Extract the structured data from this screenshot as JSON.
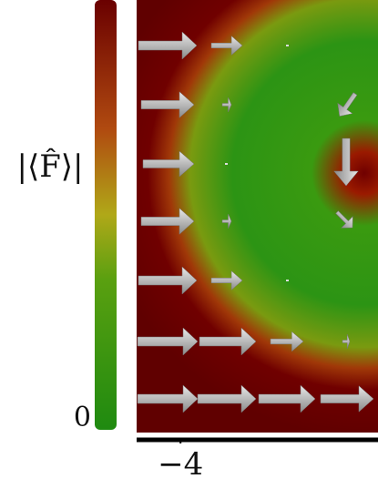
{
  "chart_data": {
    "type": "quiver",
    "colorbar_label": "|⟨F̂⟩|",
    "clim": [
      0,
      1
    ],
    "cticks": [
      0
    ],
    "xlim": [
      -5,
      0.5
    ],
    "xticks": [
      {
        "value": -4,
        "label": "−4"
      }
    ]
  }
}
